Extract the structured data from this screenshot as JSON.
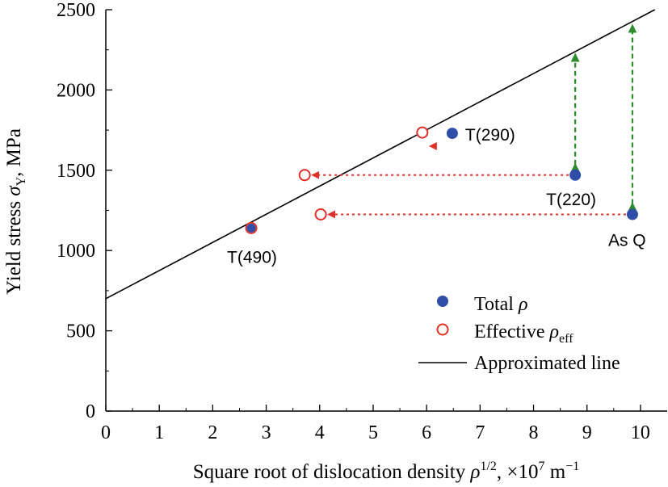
{
  "colors": {
    "total": "#2e4ea8",
    "effective": "#e0302a",
    "line": "#000000",
    "shift_arrow": "#e0302a",
    "gap_arrow": "#2e8b2e"
  },
  "chart_data": {
    "type": "scatter",
    "xlim": [
      0,
      10.5
    ],
    "ylim": [
      0,
      2500
    ],
    "x_ticks": [
      0,
      1,
      2,
      3,
      4,
      5,
      6,
      7,
      8,
      9,
      10
    ],
    "y_ticks": [
      0,
      500,
      1000,
      1500,
      2000,
      2500
    ],
    "x_tick_labels": [
      "0",
      "1",
      "2",
      "3",
      "4",
      "5",
      "6",
      "7",
      "8",
      "9",
      "10"
    ],
    "y_tick_labels": [
      "0",
      "500",
      "1000",
      "1500",
      "2000",
      "2500"
    ],
    "xlabel": {
      "pre": "Square root of dislocation density ",
      "sym": "ρ",
      "sup": "1/2",
      "mid": ", ×10",
      "exp": "7",
      "unit": " m",
      "unit_exp": "−1"
    },
    "ylabel": {
      "pre": "Yield stress ",
      "sym": "σ",
      "sub": "Y",
      "post": ", MPa"
    },
    "series": [
      {
        "name": "Total ρ",
        "points": [
          {
            "x": 2.72,
            "y": 1140,
            "label": "T(490)"
          },
          {
            "x": 6.48,
            "y": 1730,
            "label": "T(290)"
          },
          {
            "x": 8.78,
            "y": 1470,
            "label": "T(220)"
          },
          {
            "x": 9.85,
            "y": 1225,
            "label": "As Q"
          }
        ]
      },
      {
        "name": "Effective ρeff",
        "points": [
          {
            "x": 2.72,
            "y": 1140
          },
          {
            "x": 5.92,
            "y": 1735
          },
          {
            "x": 3.72,
            "y": 1470
          },
          {
            "x": 4.02,
            "y": 1225
          }
        ]
      }
    ],
    "fit_line": {
      "name": "Approximated line",
      "x0": 0,
      "y0": 700,
      "slope": 175.3
    },
    "shift_arrows": [
      {
        "from_x": 6.3,
        "to_x": 5.92,
        "y": 1650
      },
      {
        "from_x": 8.78,
        "to_x": 3.72,
        "y": 1470
      },
      {
        "from_x": 9.85,
        "to_x": 4.02,
        "y": 1225
      }
    ],
    "gap_arrows": [
      {
        "x": 8.78,
        "y_low": 1470,
        "y_high": 2220
      },
      {
        "x": 9.85,
        "y_low": 1225,
        "y_high": 2400
      }
    ],
    "legend": {
      "position": "bottom-right",
      "items": [
        {
          "marker": "filled-circle",
          "text": "Total ",
          "sym": "ρ",
          "sub": ""
        },
        {
          "marker": "open-circle",
          "text": "Effective ",
          "sym": "ρ",
          "sub": "eff"
        },
        {
          "marker": "line",
          "text": "Approximated line",
          "sym": "",
          "sub": ""
        }
      ]
    }
  }
}
